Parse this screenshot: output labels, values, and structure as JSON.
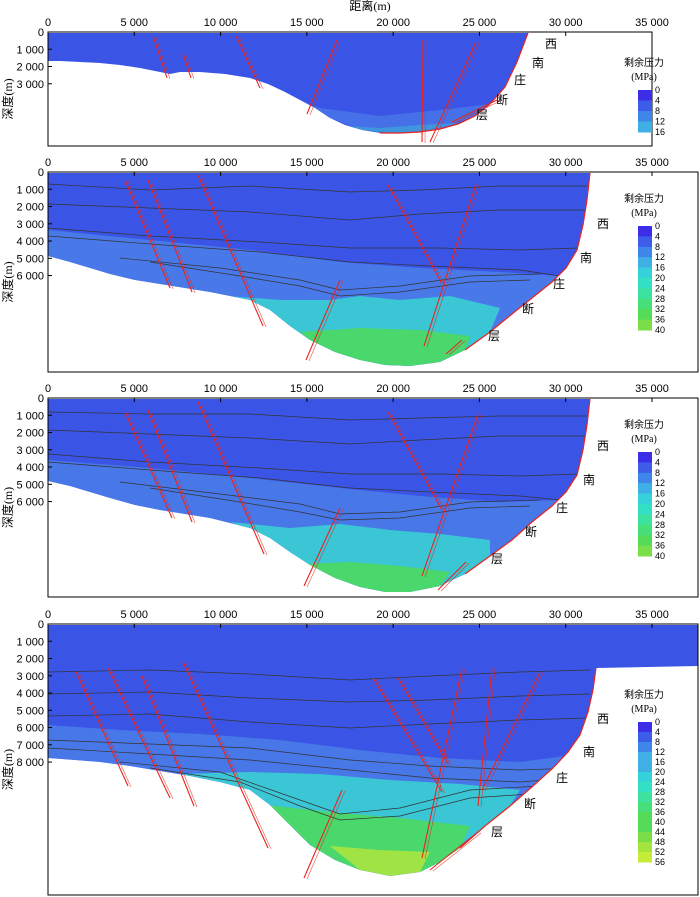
{
  "figure": {
    "x_axis_title": "距离(m)",
    "y_axis_title": "深度(m)",
    "x_ticks": [
      "0",
      "5 000",
      "10 000",
      "15 000",
      "20 000",
      "25 000",
      "30 000",
      "35 000"
    ],
    "fault_label_chars": [
      "西",
      "南",
      "庄",
      "断",
      "层"
    ],
    "legend_title_line1": "剩余压力",
    "legend_title_line2": "(MPa)"
  },
  "colors": {
    "shallow_blue": "#3a55e6",
    "mid_blue": "#4f86e8",
    "cyan": "#37d9d0",
    "green": "#4ed958",
    "yellow_green": "#a8e640",
    "fault_red": "#e8241e",
    "horizon_line": "#333333"
  },
  "panels": [
    {
      "y_ticks": [
        "0",
        "1 000",
        "2 000",
        "3 000"
      ],
      "legend_ticks": [
        "0",
        "4",
        "8",
        "12",
        "16"
      ],
      "pressure_range_mpa": [
        0,
        16
      ]
    },
    {
      "y_ticks": [
        "0",
        "1 000",
        "2 000",
        "3 000",
        "4 000",
        "5 000",
        "6 000"
      ],
      "legend_ticks": [
        "0",
        "4",
        "8",
        "12",
        "16",
        "20",
        "24",
        "28",
        "32",
        "36",
        "40"
      ],
      "pressure_range_mpa": [
        0,
        40
      ]
    },
    {
      "y_ticks": [
        "0",
        "1 000",
        "2 000",
        "3 000",
        "4 000",
        "5 000",
        "6 000"
      ],
      "legend_ticks": [
        "0",
        "4",
        "8",
        "12",
        "16",
        "20",
        "24",
        "28",
        "32",
        "36",
        "40"
      ],
      "pressure_range_mpa": [
        0,
        40
      ]
    },
    {
      "y_ticks": [
        "0",
        "1 000",
        "2 000",
        "3 000",
        "4 000",
        "5 000",
        "6 000",
        "7 000",
        "8 000"
      ],
      "legend_ticks": [
        "0",
        "4",
        "8",
        "12",
        "16",
        "20",
        "24",
        "28",
        "32",
        "36",
        "40",
        "44",
        "48",
        "52",
        "56"
      ],
      "pressure_range_mpa": [
        0,
        56
      ]
    }
  ]
}
